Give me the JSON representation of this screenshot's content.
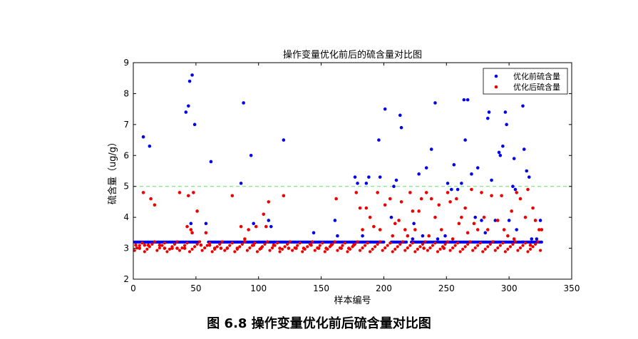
{
  "caption": "图 6.8   操作变量优化前后硫含量对比图",
  "chart_data": {
    "type": "scatter",
    "title": "操作变量优化前后的硫含量对比图",
    "xlabel": "样本编号",
    "ylabel": "硫含量（ug/g）",
    "xlim": [
      0,
      350
    ],
    "ylim": [
      2,
      9
    ],
    "xticks": [
      0,
      50,
      100,
      150,
      200,
      250,
      300,
      350
    ],
    "yticks": [
      2,
      3,
      4,
      5,
      6,
      7,
      8,
      9
    ],
    "grid": false,
    "legend_position": "top-right",
    "reference_line": {
      "y": 5,
      "color": "#66dd66",
      "style": "dashed"
    },
    "series": [
      {
        "name": "优化前硫含量",
        "color": "#0000ee",
        "points": [
          [
            8,
            6.6
          ],
          [
            13,
            6.3
          ],
          [
            42,
            7.4
          ],
          [
            44,
            7.6
          ],
          [
            45,
            8.4
          ],
          [
            47,
            8.6
          ],
          [
            49,
            7.0
          ],
          [
            46,
            3.8
          ],
          [
            58,
            3.8
          ],
          [
            62,
            5.8
          ],
          [
            86,
            5.1
          ],
          [
            88,
            7.7
          ],
          [
            94,
            6.0
          ],
          [
            96,
            3.8
          ],
          [
            108,
            3.9
          ],
          [
            110,
            3.7
          ],
          [
            120,
            6.5
          ],
          [
            144,
            3.5
          ],
          [
            161,
            3.9
          ],
          [
            163,
            3.4
          ],
          [
            177,
            5.3
          ],
          [
            179,
            5.1
          ],
          [
            183,
            3.4
          ],
          [
            186,
            5.1
          ],
          [
            188,
            5.3
          ],
          [
            196,
            6.5
          ],
          [
            197,
            5.3
          ],
          [
            201,
            7.5
          ],
          [
            206,
            4.0
          ],
          [
            208,
            5.0
          ],
          [
            210,
            5.2
          ],
          [
            213,
            7.3
          ],
          [
            214,
            6.9
          ],
          [
            223,
            3.3
          ],
          [
            224,
            3.8
          ],
          [
            228,
            5.4
          ],
          [
            231,
            3.4
          ],
          [
            234,
            5.6
          ],
          [
            238,
            6.2
          ],
          [
            241,
            7.7
          ],
          [
            243,
            3.3
          ],
          [
            249,
            3.4
          ],
          [
            251,
            5.1
          ],
          [
            254,
            4.9
          ],
          [
            256,
            5.7
          ],
          [
            259,
            4.9
          ],
          [
            262,
            5.1
          ],
          [
            264,
            7.8
          ],
          [
            265,
            6.5
          ],
          [
            267,
            7.8
          ],
          [
            270,
            5.4
          ],
          [
            273,
            4.0
          ],
          [
            275,
            5.6
          ],
          [
            278,
            3.9
          ],
          [
            281,
            3.5
          ],
          [
            283,
            7.2
          ],
          [
            284,
            7.4
          ],
          [
            286,
            5.2
          ],
          [
            289,
            3.9
          ],
          [
            292,
            6.1
          ],
          [
            293,
            6.0
          ],
          [
            295,
            6.3
          ],
          [
            297,
            7.4
          ],
          [
            298,
            7.0
          ],
          [
            300,
            3.9
          ],
          [
            303,
            5.0
          ],
          [
            304,
            5.9
          ],
          [
            305,
            4.9
          ],
          [
            306,
            3.6
          ],
          [
            311,
            7.6
          ],
          [
            312,
            6.2
          ],
          [
            314,
            5.5
          ],
          [
            316,
            5.3
          ],
          [
            318,
            3.3
          ],
          [
            322,
            3.3
          ],
          [
            325,
            3.9
          ]
        ]
      },
      {
        "name": "优化后硫含量",
        "color": "#ee0000",
        "points": [
          [
            2,
            3.1
          ],
          [
            5,
            3.0
          ],
          [
            8,
            4.8
          ],
          [
            9,
            3.1
          ],
          [
            12,
            3.1
          ],
          [
            14,
            4.6
          ],
          [
            17,
            4.4
          ],
          [
            21,
            3.1
          ],
          [
            25,
            3.0
          ],
          [
            31,
            3.0
          ],
          [
            35,
            3.0
          ],
          [
            37,
            4.8
          ],
          [
            41,
            3.0
          ],
          [
            43,
            3.7
          ],
          [
            44,
            4.7
          ],
          [
            46,
            3.6
          ],
          [
            47,
            3.5
          ],
          [
            48,
            4.8
          ],
          [
            51,
            4.2
          ],
          [
            54,
            3.1
          ],
          [
            58,
            3.5
          ],
          [
            61,
            3.1
          ],
          [
            65,
            3.0
          ],
          [
            70,
            3.0
          ],
          [
            75,
            3.0
          ],
          [
            79,
            4.7
          ],
          [
            83,
            3.0
          ],
          [
            86,
            3.7
          ],
          [
            89,
            3.3
          ],
          [
            92,
            3.6
          ],
          [
            96,
            3.1
          ],
          [
            98,
            3.7
          ],
          [
            100,
            3.2
          ],
          [
            102,
            3.0
          ],
          [
            104,
            4.1
          ],
          [
            106,
            3.7
          ],
          [
            108,
            4.5
          ],
          [
            112,
            3.1
          ],
          [
            117,
            3.0
          ],
          [
            120,
            4.7
          ],
          [
            124,
            3.0
          ],
          [
            130,
            3.0
          ],
          [
            136,
            3.0
          ],
          [
            142,
            3.1
          ],
          [
            148,
            3.0
          ],
          [
            154,
            3.0
          ],
          [
            158,
            3.1
          ],
          [
            162,
            4.6
          ],
          [
            166,
            3.0
          ],
          [
            172,
            3.0
          ],
          [
            176,
            3.1
          ],
          [
            178,
            4.8
          ],
          [
            181,
            4.3
          ],
          [
            183,
            3.6
          ],
          [
            186,
            4.3
          ],
          [
            189,
            4.0
          ],
          [
            192,
            3.7
          ],
          [
            195,
            4.8
          ],
          [
            197,
            3.6
          ],
          [
            201,
            4.4
          ],
          [
            205,
            4.6
          ],
          [
            207,
            3.4
          ],
          [
            209,
            3.8
          ],
          [
            212,
            3.9
          ],
          [
            214,
            4.5
          ],
          [
            217,
            3.6
          ],
          [
            219,
            3.4
          ],
          [
            221,
            4.8
          ],
          [
            223,
            4.2
          ],
          [
            225,
            3.6
          ],
          [
            228,
            4.2
          ],
          [
            230,
            4.6
          ],
          [
            232,
            3.0
          ],
          [
            234,
            4.8
          ],
          [
            236,
            3.4
          ],
          [
            238,
            4.6
          ],
          [
            241,
            4.0
          ],
          [
            244,
            4.4
          ],
          [
            246,
            3.6
          ],
          [
            248,
            3.0
          ],
          [
            251,
            4.8
          ],
          [
            253,
            4.5
          ],
          [
            255,
            3.3
          ],
          [
            258,
            4.6
          ],
          [
            260,
            3.8
          ],
          [
            262,
            4.0
          ],
          [
            265,
            4.3
          ],
          [
            267,
            3.5
          ],
          [
            270,
            4.9
          ],
          [
            272,
            3.8
          ],
          [
            275,
            3.6
          ],
          [
            278,
            4.8
          ],
          [
            280,
            4.0
          ],
          [
            283,
            3.6
          ],
          [
            286,
            4.7
          ],
          [
            288,
            3.2
          ],
          [
            291,
            3.9
          ],
          [
            294,
            4.7
          ],
          [
            296,
            3.6
          ],
          [
            299,
            3.4
          ],
          [
            302,
            4.2
          ],
          [
            304,
            3.3
          ],
          [
            306,
            4.8
          ],
          [
            309,
            4.6
          ],
          [
            311,
            3.2
          ],
          [
            313,
            4.0
          ],
          [
            315,
            4.9
          ],
          [
            317,
            3.1
          ],
          [
            319,
            4.3
          ],
          [
            321,
            3.9
          ],
          [
            324,
            3.6
          ],
          [
            326,
            3.6
          ]
        ]
      }
    ]
  }
}
